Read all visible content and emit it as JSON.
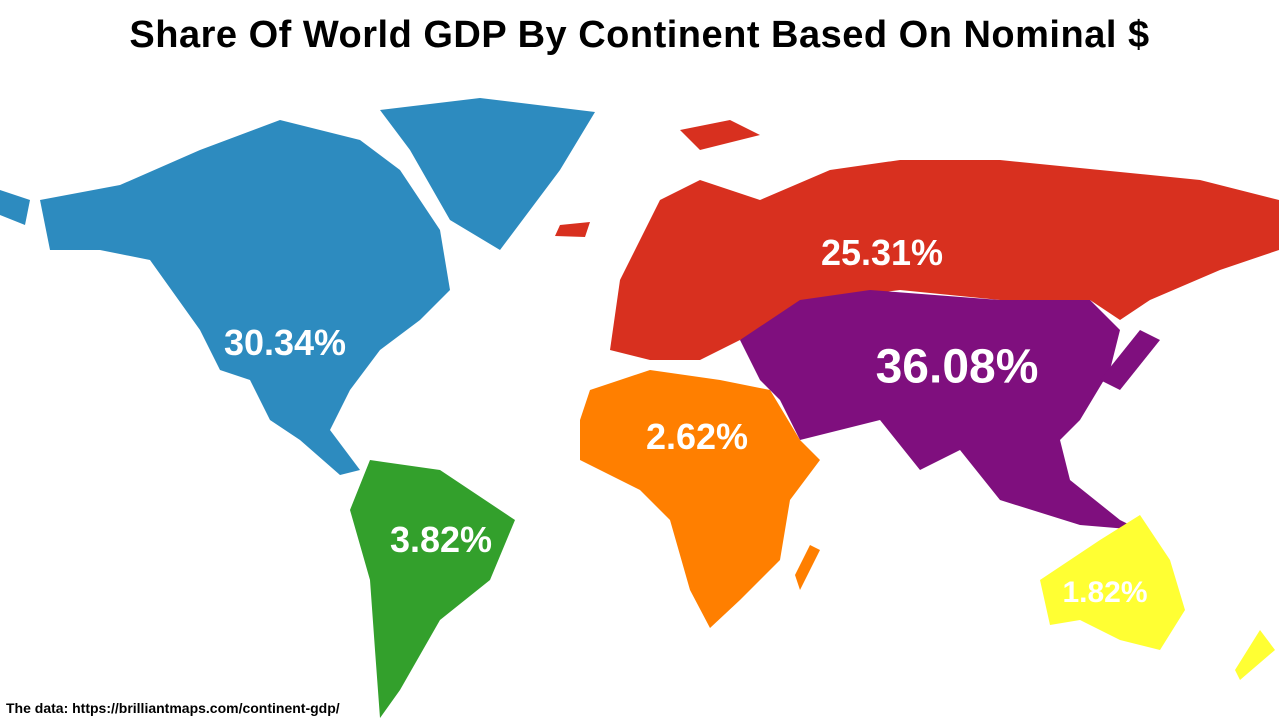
{
  "title": "Share Of World GDP By Continent Based On Nominal $",
  "source": "The data: https://brilliantmaps.com/continent-gdp/",
  "continents": [
    {
      "key": "north_america",
      "label": "30.34%",
      "value": 30.34,
      "color": "#2d8bbf"
    },
    {
      "key": "europe",
      "label": "25.31%",
      "value": 25.31,
      "color": "#d8301f"
    },
    {
      "key": "asia",
      "label": "36.08%",
      "value": 36.08,
      "color": "#7f0f7e"
    },
    {
      "key": "africa",
      "label": "2.62%",
      "value": 2.62,
      "color": "#ff7f00"
    },
    {
      "key": "south_america",
      "label": "3.82%",
      "value": 3.82,
      "color": "#33a02c"
    },
    {
      "key": "oceania",
      "label": "1.82%",
      "value": 1.82,
      "color": "#ffff33"
    }
  ]
}
